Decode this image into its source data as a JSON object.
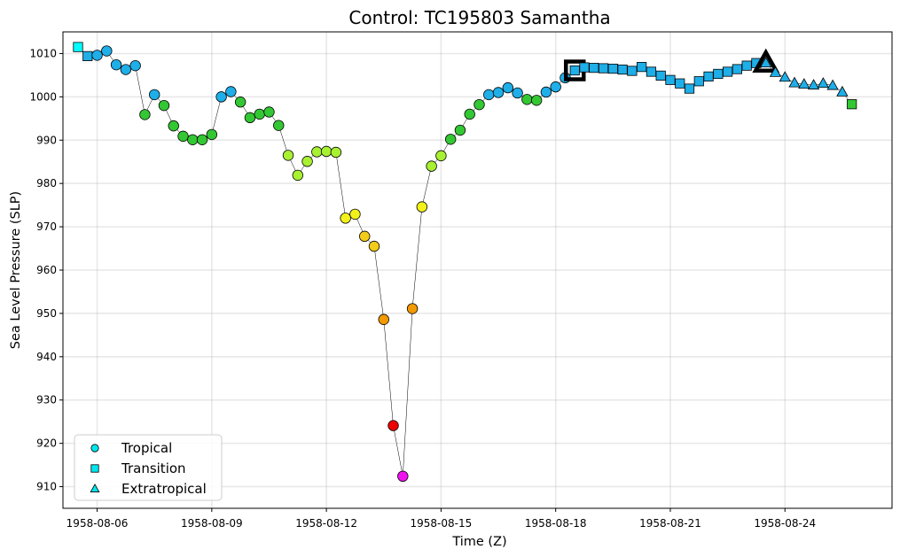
{
  "chart_data": {
    "type": "scatter",
    "title": "Control: TC195803 Samantha",
    "xlabel": "Time (Z)",
    "ylabel": "Sea Level Pressure (SLP)",
    "x_ticks": [
      "1958-08-06",
      "1958-08-09",
      "1958-08-12",
      "1958-08-15",
      "1958-08-18",
      "1958-08-21",
      "1958-08-24"
    ],
    "y_ticks": [
      910,
      920,
      930,
      940,
      950,
      960,
      970,
      980,
      990,
      1000,
      1010
    ],
    "xlim": [
      "1958-08-05 12:00",
      "1958-08-26 12:00"
    ],
    "ylim": [
      905,
      1015
    ],
    "grid": true,
    "legend_position": "bottom-left",
    "legend": [
      {
        "label": "Tropical",
        "marker": "circle",
        "color": "#00e5ee"
      },
      {
        "label": "Transition",
        "marker": "square",
        "color": "#00e5ee"
      },
      {
        "label": "Extratropical",
        "marker": "triangle",
        "color": "#00e5ee"
      }
    ],
    "colors": {
      "blue": "#1eaee8",
      "cyan": "#00ffff",
      "green": "#33c733",
      "lime": "#a8f032",
      "yellow": "#f2f21a",
      "gold": "#f2cc19",
      "orange": "#f29a00",
      "red": "#ee0000",
      "magenta": "#ee11ee"
    },
    "points": [
      {
        "t": "1958-08-05 12:00",
        "slp": 1011.5,
        "marker": "square",
        "color": "cyan"
      },
      {
        "t": "1958-08-05 18:00",
        "slp": 1009.4,
        "marker": "square",
        "color": "blue"
      },
      {
        "t": "1958-08-06 00:00",
        "slp": 1009.6,
        "marker": "circle",
        "color": "blue"
      },
      {
        "t": "1958-08-06 06:00",
        "slp": 1010.6,
        "marker": "circle",
        "color": "blue"
      },
      {
        "t": "1958-08-06 12:00",
        "slp": 1007.4,
        "marker": "circle",
        "color": "blue"
      },
      {
        "t": "1958-08-06 18:00",
        "slp": 1006.3,
        "marker": "circle",
        "color": "blue"
      },
      {
        "t": "1958-08-07 00:00",
        "slp": 1007.2,
        "marker": "circle",
        "color": "blue"
      },
      {
        "t": "1958-08-07 06:00",
        "slp": 995.9,
        "marker": "circle",
        "color": "green"
      },
      {
        "t": "1958-08-07 12:00",
        "slp": 1000.5,
        "marker": "circle",
        "color": "blue"
      },
      {
        "t": "1958-08-07 18:00",
        "slp": 998.0,
        "marker": "circle",
        "color": "green"
      },
      {
        "t": "1958-08-08 00:00",
        "slp": 993.3,
        "marker": "circle",
        "color": "green"
      },
      {
        "t": "1958-08-08 06:00",
        "slp": 990.9,
        "marker": "circle",
        "color": "green"
      },
      {
        "t": "1958-08-08 12:00",
        "slp": 990.1,
        "marker": "circle",
        "color": "green"
      },
      {
        "t": "1958-08-08 18:00",
        "slp": 990.1,
        "marker": "circle",
        "color": "green"
      },
      {
        "t": "1958-08-09 00:00",
        "slp": 991.3,
        "marker": "circle",
        "color": "green"
      },
      {
        "t": "1958-08-09 06:00",
        "slp": 1000.0,
        "marker": "circle",
        "color": "blue"
      },
      {
        "t": "1958-08-09 12:00",
        "slp": 1001.2,
        "marker": "circle",
        "color": "blue"
      },
      {
        "t": "1958-08-09 18:00",
        "slp": 998.8,
        "marker": "circle",
        "color": "green"
      },
      {
        "t": "1958-08-10 00:00",
        "slp": 995.2,
        "marker": "circle",
        "color": "green"
      },
      {
        "t": "1958-08-10 06:00",
        "slp": 996.0,
        "marker": "circle",
        "color": "green"
      },
      {
        "t": "1958-08-10 12:00",
        "slp": 996.5,
        "marker": "circle",
        "color": "green"
      },
      {
        "t": "1958-08-10 18:00",
        "slp": 993.4,
        "marker": "circle",
        "color": "green"
      },
      {
        "t": "1958-08-11 00:00",
        "slp": 986.5,
        "marker": "circle",
        "color": "lime"
      },
      {
        "t": "1958-08-11 06:00",
        "slp": 981.9,
        "marker": "circle",
        "color": "lime"
      },
      {
        "t": "1958-08-11 12:00",
        "slp": 985.1,
        "marker": "circle",
        "color": "lime"
      },
      {
        "t": "1958-08-11 18:00",
        "slp": 987.3,
        "marker": "circle",
        "color": "lime"
      },
      {
        "t": "1958-08-12 00:00",
        "slp": 987.4,
        "marker": "circle",
        "color": "lime"
      },
      {
        "t": "1958-08-12 06:00",
        "slp": 987.2,
        "marker": "circle",
        "color": "lime"
      },
      {
        "t": "1958-08-12 12:00",
        "slp": 972.0,
        "marker": "circle",
        "color": "yellow"
      },
      {
        "t": "1958-08-12 18:00",
        "slp": 972.9,
        "marker": "circle",
        "color": "yellow"
      },
      {
        "t": "1958-08-13 00:00",
        "slp": 967.8,
        "marker": "circle",
        "color": "gold"
      },
      {
        "t": "1958-08-13 06:00",
        "slp": 965.5,
        "marker": "circle",
        "color": "gold"
      },
      {
        "t": "1958-08-13 12:00",
        "slp": 948.6,
        "marker": "circle",
        "color": "orange"
      },
      {
        "t": "1958-08-13 18:00",
        "slp": 924.1,
        "marker": "circle",
        "color": "red"
      },
      {
        "t": "1958-08-14 00:00",
        "slp": 912.4,
        "marker": "circle",
        "color": "magenta"
      },
      {
        "t": "1958-08-14 06:00",
        "slp": 951.1,
        "marker": "circle",
        "color": "orange"
      },
      {
        "t": "1958-08-14 12:00",
        "slp": 974.6,
        "marker": "circle",
        "color": "yellow"
      },
      {
        "t": "1958-08-14 18:00",
        "slp": 984.0,
        "marker": "circle",
        "color": "lime"
      },
      {
        "t": "1958-08-15 00:00",
        "slp": 986.4,
        "marker": "circle",
        "color": "lime"
      },
      {
        "t": "1958-08-15 06:00",
        "slp": 990.2,
        "marker": "circle",
        "color": "green"
      },
      {
        "t": "1958-08-15 12:00",
        "slp": 992.3,
        "marker": "circle",
        "color": "green"
      },
      {
        "t": "1958-08-15 18:00",
        "slp": 996.0,
        "marker": "circle",
        "color": "green"
      },
      {
        "t": "1958-08-16 00:00",
        "slp": 998.2,
        "marker": "circle",
        "color": "green"
      },
      {
        "t": "1958-08-16 06:00",
        "slp": 1000.5,
        "marker": "circle",
        "color": "blue"
      },
      {
        "t": "1958-08-16 12:00",
        "slp": 1001.0,
        "marker": "circle",
        "color": "blue"
      },
      {
        "t": "1958-08-16 18:00",
        "slp": 1002.1,
        "marker": "circle",
        "color": "blue"
      },
      {
        "t": "1958-08-17 00:00",
        "slp": 1000.9,
        "marker": "circle",
        "color": "blue"
      },
      {
        "t": "1958-08-17 06:00",
        "slp": 999.4,
        "marker": "circle",
        "color": "green"
      },
      {
        "t": "1958-08-17 12:00",
        "slp": 999.2,
        "marker": "circle",
        "color": "green"
      },
      {
        "t": "1958-08-17 18:00",
        "slp": 1001.1,
        "marker": "circle",
        "color": "blue"
      },
      {
        "t": "1958-08-18 00:00",
        "slp": 1002.3,
        "marker": "circle",
        "color": "blue"
      },
      {
        "t": "1958-08-18 06:00",
        "slp": 1004.4,
        "marker": "circle",
        "color": "blue"
      },
      {
        "t": "1958-08-18 12:00",
        "slp": 1006.1,
        "marker": "square",
        "color": "blue",
        "highlight": true
      },
      {
        "t": "1958-08-18 18:00",
        "slp": 1006.8,
        "marker": "square",
        "color": "blue"
      },
      {
        "t": "1958-08-19 00:00",
        "slp": 1006.7,
        "marker": "square",
        "color": "blue"
      },
      {
        "t": "1958-08-19 06:00",
        "slp": 1006.6,
        "marker": "square",
        "color": "blue"
      },
      {
        "t": "1958-08-19 12:00",
        "slp": 1006.5,
        "marker": "square",
        "color": "blue"
      },
      {
        "t": "1958-08-19 18:00",
        "slp": 1006.3,
        "marker": "square",
        "color": "blue"
      },
      {
        "t": "1958-08-20 00:00",
        "slp": 1006.0,
        "marker": "square",
        "color": "blue"
      },
      {
        "t": "1958-08-20 06:00",
        "slp": 1006.9,
        "marker": "square",
        "color": "blue"
      },
      {
        "t": "1958-08-20 12:00",
        "slp": 1005.8,
        "marker": "square",
        "color": "blue"
      },
      {
        "t": "1958-08-20 18:00",
        "slp": 1004.9,
        "marker": "square",
        "color": "blue"
      },
      {
        "t": "1958-08-21 00:00",
        "slp": 1003.9,
        "marker": "square",
        "color": "blue"
      },
      {
        "t": "1958-08-21 06:00",
        "slp": 1003.1,
        "marker": "square",
        "color": "blue"
      },
      {
        "t": "1958-08-21 12:00",
        "slp": 1001.9,
        "marker": "square",
        "color": "blue"
      },
      {
        "t": "1958-08-21 18:00",
        "slp": 1003.6,
        "marker": "square",
        "color": "blue"
      },
      {
        "t": "1958-08-22 00:00",
        "slp": 1004.7,
        "marker": "square",
        "color": "blue"
      },
      {
        "t": "1958-08-22 06:00",
        "slp": 1005.3,
        "marker": "square",
        "color": "blue"
      },
      {
        "t": "1958-08-22 12:00",
        "slp": 1005.8,
        "marker": "square",
        "color": "blue"
      },
      {
        "t": "1958-08-22 18:00",
        "slp": 1006.4,
        "marker": "square",
        "color": "blue"
      },
      {
        "t": "1958-08-23 00:00",
        "slp": 1007.2,
        "marker": "square",
        "color": "blue"
      },
      {
        "t": "1958-08-23 06:00",
        "slp": 1007.8,
        "marker": "square",
        "color": "blue"
      },
      {
        "t": "1958-08-23 12:00",
        "slp": 1007.8,
        "marker": "triangle",
        "color": "blue",
        "highlight": true
      },
      {
        "t": "1958-08-23 18:00",
        "slp": 1005.6,
        "marker": "triangle",
        "color": "blue"
      },
      {
        "t": "1958-08-24 00:00",
        "slp": 1004.5,
        "marker": "triangle",
        "color": "blue"
      },
      {
        "t": "1958-08-24 06:00",
        "slp": 1003.2,
        "marker": "triangle",
        "color": "blue"
      },
      {
        "t": "1958-08-24 12:00",
        "slp": 1002.9,
        "marker": "triangle",
        "color": "blue"
      },
      {
        "t": "1958-08-24 18:00",
        "slp": 1002.7,
        "marker": "triangle",
        "color": "blue"
      },
      {
        "t": "1958-08-25 00:00",
        "slp": 1003.1,
        "marker": "triangle",
        "color": "blue"
      },
      {
        "t": "1958-08-25 06:00",
        "slp": 1002.6,
        "marker": "triangle",
        "color": "blue"
      },
      {
        "t": "1958-08-25 12:00",
        "slp": 1001.1,
        "marker": "triangle",
        "color": "blue"
      },
      {
        "t": "1958-08-25 18:00",
        "slp": 998.3,
        "marker": "square",
        "color": "green"
      }
    ]
  }
}
